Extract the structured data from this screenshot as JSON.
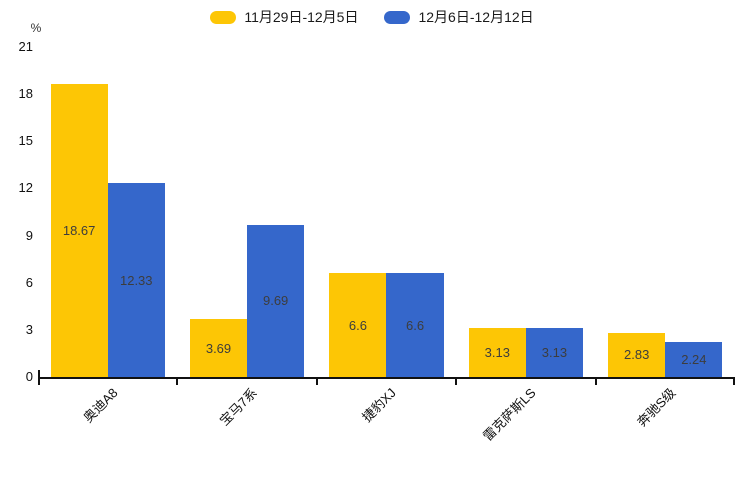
{
  "chart_data": {
    "type": "bar",
    "title": "",
    "y_unit": "%",
    "ylim": [
      0,
      21
    ],
    "yticks": [
      0,
      3,
      6,
      9,
      12,
      15,
      18,
      21
    ],
    "grid": false,
    "legend_position": "top-center",
    "value_labels": "inside-center",
    "x_label_rotation_deg": -45,
    "categories": [
      "奥迪A8",
      "宝马7系",
      "捷豹XJ",
      "雷克萨斯LS",
      "奔驰S级"
    ],
    "series": [
      {
        "name": "11月29日-12月5日",
        "color": "#FDC605",
        "values": [
          18.67,
          3.69,
          6.6,
          3.13,
          2.83
        ]
      },
      {
        "name": "12月6日-12月12日",
        "color": "#3567CB",
        "values": [
          12.33,
          9.69,
          6.6,
          3.13,
          2.24
        ]
      }
    ]
  },
  "colors": {
    "axis": "#111111",
    "tick_label": "#111111",
    "value_label": "#3d3d3d",
    "background": "#ffffff"
  }
}
